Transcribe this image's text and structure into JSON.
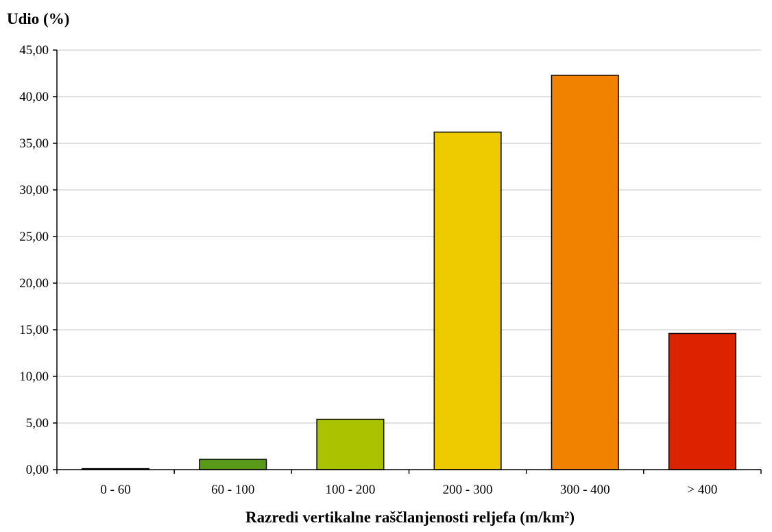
{
  "chart_data": {
    "type": "bar",
    "title": "",
    "ylabel": "Udio (%)",
    "xlabel": "Razredi vertikalne raščlanjenosti reljefa (m/km²)",
    "categories": [
      "0 - 60",
      "60 - 100",
      "100 - 200",
      "200 - 300",
      "300 - 400",
      "> 400"
    ],
    "values": [
      0.1,
      1.1,
      5.4,
      36.2,
      42.3,
      14.6
    ],
    "bar_colors": [
      "#3a6b10",
      "#5a9a1a",
      "#abc200",
      "#eecb00",
      "#f08200",
      "#dd2200"
    ],
    "ylim": [
      0,
      45
    ],
    "yticks": [
      0,
      5,
      10,
      15,
      20,
      25,
      30,
      35,
      40,
      45
    ],
    "ytick_labels": [
      "0,00",
      "5,00",
      "10,00",
      "15,00",
      "20,00",
      "25,00",
      "30,00",
      "35,00",
      "40,00",
      "45,00"
    ],
    "grid": true,
    "grid_color": "#d9d9d9",
    "legend": "none"
  }
}
